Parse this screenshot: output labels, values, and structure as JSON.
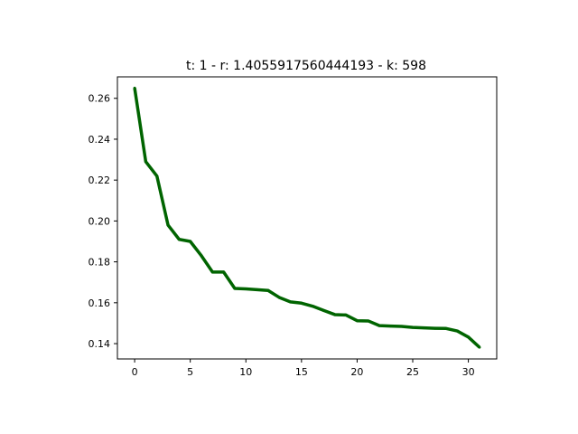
{
  "chart_data": {
    "type": "line",
    "title": "t: 1 - r: 1.4055917560444193 - k: 598",
    "xlabel": "",
    "ylabel": "",
    "xlim": [
      -1.55,
      32.55
    ],
    "ylim": [
      0.1325,
      0.2705
    ],
    "x_ticks": [
      0,
      5,
      10,
      15,
      20,
      25,
      30
    ],
    "y_ticks": [
      0.14,
      0.16,
      0.18,
      0.2,
      0.22,
      0.24,
      0.26
    ],
    "y_tick_labels": [
      "0.14",
      "0.16",
      "0.18",
      "0.20",
      "0.22",
      "0.24",
      "0.26"
    ],
    "grid": false,
    "series": [
      {
        "color": "#006400",
        "x": [
          0,
          1,
          2,
          3,
          4,
          5,
          6,
          7,
          8,
          9,
          10,
          11,
          12,
          13,
          14,
          15,
          16,
          17,
          18,
          19,
          20,
          21,
          22,
          23,
          24,
          25,
          26,
          27,
          28,
          29,
          30,
          31
        ],
        "values": [
          0.265,
          0.229,
          0.222,
          0.198,
          0.191,
          0.19,
          0.183,
          0.175,
          0.175,
          0.167,
          0.1668,
          0.1664,
          0.166,
          0.1626,
          0.1604,
          0.1598,
          0.1583,
          0.1562,
          0.1542,
          0.154,
          0.1512,
          0.1511,
          0.1488,
          0.1486,
          0.1484,
          0.1479,
          0.1477,
          0.1475,
          0.1474,
          0.1462,
          0.1432,
          0.1382
        ]
      }
    ]
  }
}
